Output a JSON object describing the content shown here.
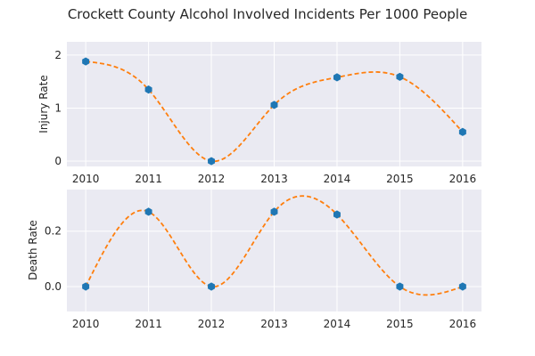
{
  "figure": {
    "title": "Crockett County Alcohol Involved Incidents Per 1000 People"
  },
  "chart_data": [
    {
      "type": "line",
      "ylabel": "Injury Rate",
      "xlabel": "",
      "x": [
        2010,
        2011,
        2012,
        2013,
        2014,
        2015,
        2016
      ],
      "y": [
        1.88,
        1.35,
        0.0,
        1.06,
        1.58,
        1.59,
        0.55
      ],
      "xlim": [
        2009.7,
        2016.3
      ],
      "ylim": [
        -0.1,
        2.25
      ],
      "xticks": [
        2010,
        2011,
        2012,
        2013,
        2014,
        2015,
        2016
      ],
      "yticks": [
        0,
        1,
        2
      ],
      "ytick_labels": [
        "0",
        "1",
        "2"
      ],
      "series": [
        {
          "style": "markers",
          "marker": "hexagon",
          "color": "#1f77b4"
        },
        {
          "style": "dashed smooth curve",
          "color": "#ff7f0e"
        }
      ],
      "grid": true
    },
    {
      "type": "line",
      "ylabel": "Death Rate",
      "xlabel": "",
      "x": [
        2010,
        2011,
        2012,
        2013,
        2014,
        2015,
        2016
      ],
      "y": [
        0.0,
        0.27,
        0.0,
        0.27,
        0.26,
        0.0,
        0.0
      ],
      "xlim": [
        2009.7,
        2016.3
      ],
      "ylim": [
        -0.09,
        0.35
      ],
      "xticks": [
        2010,
        2011,
        2012,
        2013,
        2014,
        2015,
        2016
      ],
      "yticks": [
        0.0,
        0.2
      ],
      "ytick_labels": [
        "0.0",
        "0.2"
      ],
      "series": [
        {
          "style": "markers",
          "marker": "hexagon",
          "color": "#1f77b4"
        },
        {
          "style": "dashed smooth curve",
          "color": "#ff7f0e"
        }
      ],
      "grid": true
    }
  ]
}
